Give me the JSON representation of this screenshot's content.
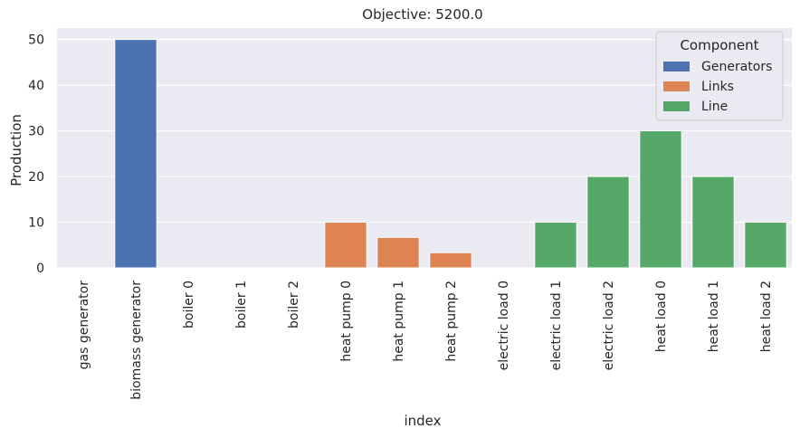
{
  "chart_data": {
    "type": "bar",
    "title": "Objective: 5200.0",
    "xlabel": "index",
    "ylabel": "Production",
    "ylim": [
      0,
      52.5
    ],
    "yticks": [
      0,
      10,
      20,
      30,
      40,
      50
    ],
    "grid": true,
    "legend_title": "Component",
    "legend_position": "top-right",
    "series": [
      {
        "name": "Generators",
        "color": "#4c72b0"
      },
      {
        "name": "Links",
        "color": "#dd8452"
      },
      {
        "name": "Line",
        "color": "#55a868"
      }
    ],
    "categories": [
      "gas generator",
      "biomass generator",
      "boiler 0",
      "boiler 1",
      "boiler 2",
      "heat pump 0",
      "heat pump 1",
      "heat pump 2",
      "electric load 0",
      "electric load 1",
      "electric load 2",
      "heat load 0",
      "heat load 1",
      "heat load 2"
    ],
    "values": [
      0,
      50,
      0,
      0,
      0,
      10,
      6.67,
      3.33,
      0,
      10,
      20,
      30,
      20,
      10
    ],
    "component": [
      "Generators",
      "Generators",
      "Links",
      "Links",
      "Links",
      "Links",
      "Links",
      "Links",
      "Line",
      "Line",
      "Line",
      "Line",
      "Line",
      "Line"
    ]
  }
}
